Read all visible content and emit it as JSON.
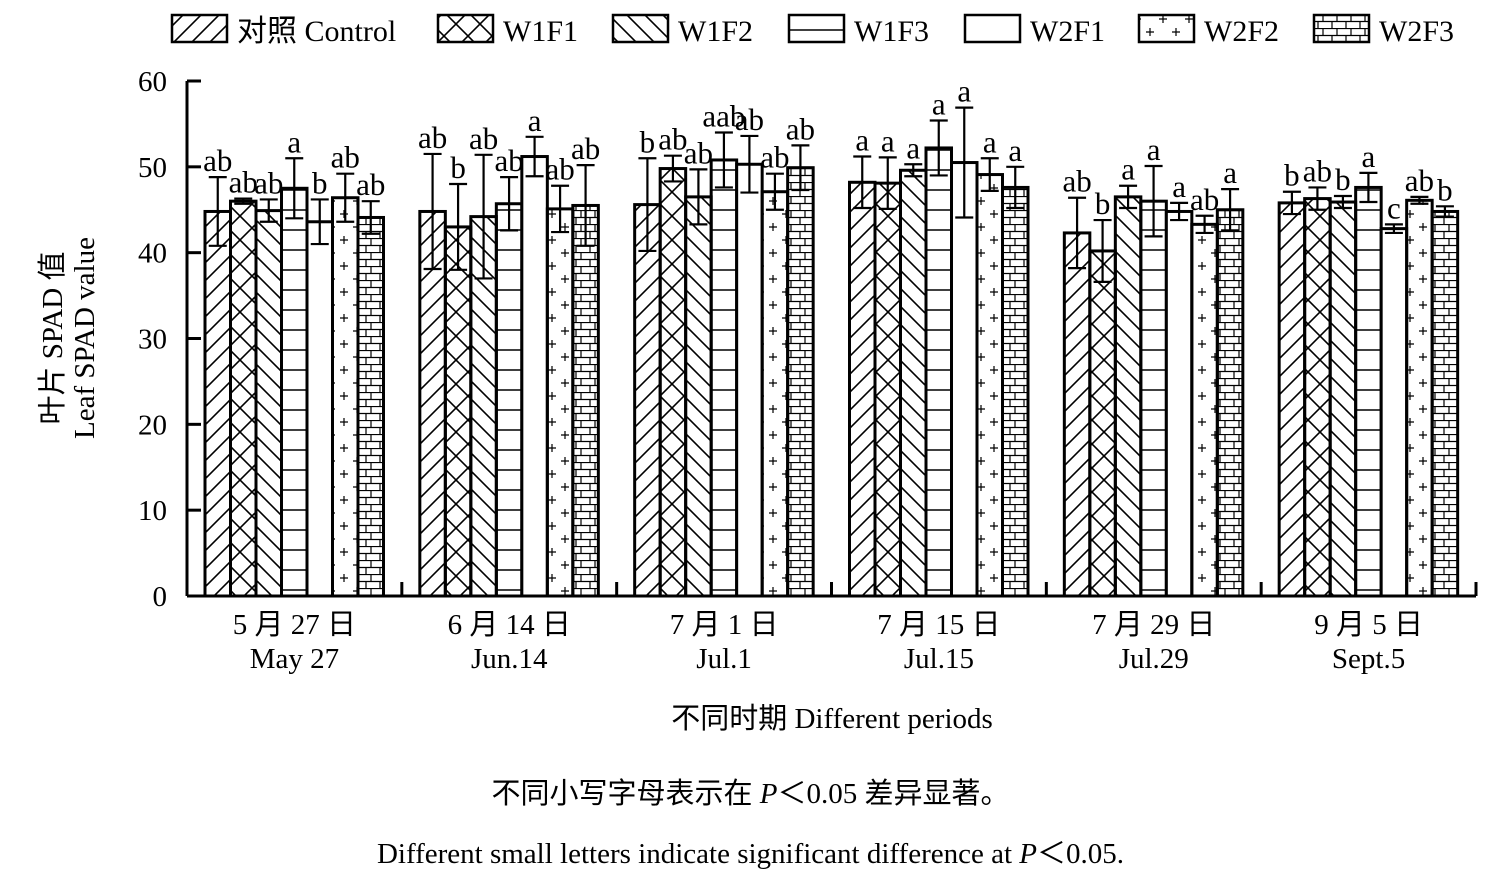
{
  "chart_data": {
    "type": "bar",
    "xlabel": "不同时期 Different periods",
    "ylabel_cn": "叶片 SPAD 值",
    "ylabel_en": "Leaf SPAD value",
    "ylim": [
      0,
      60
    ],
    "yticks": [
      0,
      10,
      20,
      30,
      40,
      50,
      60
    ],
    "grid": false,
    "legend_position": "top",
    "categories": [
      {
        "cn": "5 月 27 日",
        "en": "May 27"
      },
      {
        "cn": "6 月 14 日",
        "en": "Jun.14"
      },
      {
        "cn": "7 月 1 日",
        "en": "Jul.1"
      },
      {
        "cn": "7 月 15 日",
        "en": "Jul.15"
      },
      {
        "cn": "7 月 29 日",
        "en": "Jul.29"
      },
      {
        "cn": "9 月 5 日",
        "en": "Sept.5"
      }
    ],
    "series": [
      {
        "name": "对照 Control",
        "pattern": "diag-right",
        "values": [
          44.8,
          44.8,
          45.6,
          48.2,
          42.3,
          45.8
        ],
        "errors": [
          4.0,
          6.7,
          5.4,
          3.0,
          4.1,
          1.3
        ],
        "letters": [
          "ab",
          "ab",
          "b",
          "a",
          "ab",
          "b"
        ]
      },
      {
        "name": "W1F1",
        "pattern": "cross",
        "values": [
          46.0,
          43.0,
          49.8,
          48.1,
          40.2,
          46.3
        ],
        "errors": [
          0.3,
          5.0,
          1.5,
          3.0,
          3.6,
          1.3
        ],
        "letters": [
          "ab",
          "b",
          "ab",
          "a",
          "b",
          "ab"
        ]
      },
      {
        "name": "W1F2",
        "pattern": "diag-left",
        "values": [
          44.9,
          44.2,
          46.5,
          49.6,
          46.5,
          45.9
        ],
        "errors": [
          1.3,
          7.2,
          3.2,
          0.7,
          1.3,
          0.7
        ],
        "letters": [
          "ab",
          "ab",
          "ab",
          "a",
          "a",
          "b"
        ]
      },
      {
        "name": "W1F3",
        "pattern": "hlines",
        "values": [
          47.5,
          45.7,
          50.8,
          52.2,
          46.0,
          47.6
        ],
        "errors": [
          3.5,
          3.1,
          3.2,
          3.2,
          4.1,
          1.7
        ],
        "letters": [
          "a",
          "ab",
          "aab",
          "a",
          "a",
          "a"
        ]
      },
      {
        "name": "W2F1",
        "pattern": "none",
        "values": [
          43.6,
          51.2,
          50.3,
          50.5,
          44.8,
          42.8
        ],
        "errors": [
          2.6,
          2.3,
          3.3,
          6.4,
          1.0,
          0.5
        ],
        "letters": [
          "b",
          "a",
          "ab",
          "a",
          "a",
          "c"
        ]
      },
      {
        "name": "W2F2",
        "pattern": "dashes",
        "values": [
          46.4,
          45.1,
          47.1,
          49.1,
          43.3,
          46.1
        ],
        "errors": [
          2.8,
          2.7,
          2.1,
          1.9,
          1.0,
          0.4
        ],
        "letters": [
          "ab",
          "ab",
          "ab",
          "a",
          "ab",
          "ab"
        ]
      },
      {
        "name": "W2F3",
        "pattern": "brick",
        "values": [
          44.1,
          45.5,
          49.9,
          47.6,
          45.0,
          44.8
        ],
        "errors": [
          1.9,
          4.7,
          2.6,
          2.4,
          2.4,
          0.6
        ],
        "letters": [
          "ab",
          "ab",
          "ab",
          "a",
          "a",
          "b"
        ]
      }
    ]
  },
  "caption": {
    "cn_before": "不同小写字母表示在 ",
    "cn_p": "P",
    "cn_after": "＜0.05 差异显著。",
    "en_before": "Different small letters indicate significant difference at ",
    "en_p": "P",
    "en_after": "＜0.05."
  }
}
